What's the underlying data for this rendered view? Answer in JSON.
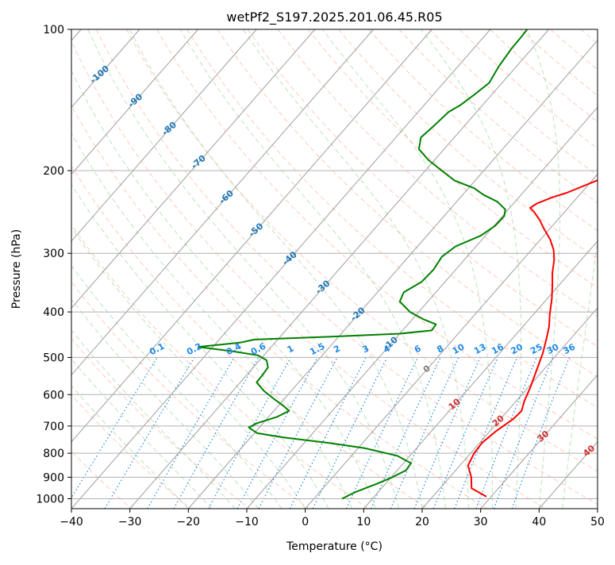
{
  "chart_data": {
    "type": "line",
    "title": "wetPf2_S197.2025.201.06.45.R05",
    "xlabel": "Temperature (°C)",
    "ylabel": "Pressure (hPa)",
    "xlim": [
      -40,
      50
    ],
    "ylim": [
      1050,
      100
    ],
    "y_scale": "log",
    "grid": true,
    "x_ticks": [
      "−40",
      "−30",
      "−20",
      "−10",
      "0",
      "10",
      "20",
      "30",
      "40",
      "50"
    ],
    "y_ticks": [
      "100",
      "200",
      "300",
      "400",
      "500",
      "600",
      "700",
      "800",
      "900",
      "1000"
    ],
    "skew_t": true,
    "series": [
      {
        "color": "#ff0000",
        "points_t_p": [
          [
            29.2,
            990
          ],
          [
            25.4,
            950
          ],
          [
            23.7,
            900
          ],
          [
            21.4,
            850
          ],
          [
            20.6,
            800
          ],
          [
            20.4,
            760
          ],
          [
            21.0,
            720
          ],
          [
            22.2,
            675
          ],
          [
            22.4,
            650
          ],
          [
            21.4,
            620
          ],
          [
            20.4,
            580
          ],
          [
            18.8,
            530
          ],
          [
            17.4,
            490
          ],
          [
            15.8,
            455
          ],
          [
            14.5,
            430
          ],
          [
            12.8,
            405
          ],
          [
            10.8,
            375
          ],
          [
            8.8,
            350
          ],
          [
            7.0,
            330
          ],
          [
            5.4,
            310
          ],
          [
            3.8,
            295
          ],
          [
            1.6,
            280
          ],
          [
            -1.2,
            265
          ],
          [
            -3.0,
            255
          ],
          [
            -5.2,
            245
          ],
          [
            -6.5,
            240
          ],
          [
            -6.0,
            235
          ],
          [
            -4.3,
            228
          ],
          [
            -2.5,
            223
          ],
          [
            -1.0,
            217
          ],
          [
            0.8,
            210
          ],
          [
            2.5,
            203
          ],
          [
            4.2,
            195
          ],
          [
            6.4,
            185
          ],
          [
            8.5,
            175
          ],
          [
            10.3,
            167
          ],
          [
            11.8,
            160
          ],
          [
            12.0,
            150
          ],
          [
            12.4,
            142
          ],
          [
            13.9,
            135
          ],
          [
            18.0,
            125
          ],
          [
            21.4,
            115
          ],
          [
            23.4,
            108
          ],
          [
            24.4,
            103
          ],
          [
            24.4,
            100
          ]
        ]
      },
      {
        "color": "#008000",
        "points_t_p": [
          [
            4.8,
            1000
          ],
          [
            6.0,
            970
          ],
          [
            7.2,
            950
          ],
          [
            8.5,
            930
          ],
          [
            10.2,
            900
          ],
          [
            11.5,
            870
          ],
          [
            11.3,
            840
          ],
          [
            7.8,
            810
          ],
          [
            1.0,
            780
          ],
          [
            -6.0,
            760
          ],
          [
            -14.5,
            740
          ],
          [
            -19.5,
            725
          ],
          [
            -21.8,
            705
          ],
          [
            -21.0,
            690
          ],
          [
            -18.6,
            670
          ],
          [
            -17.4,
            650
          ],
          [
            -19.0,
            635
          ],
          [
            -21.5,
            615
          ],
          [
            -24.6,
            590
          ],
          [
            -27.2,
            565
          ],
          [
            -27.3,
            545
          ],
          [
            -27.5,
            525
          ],
          [
            -28.8,
            507
          ],
          [
            -31.0,
            495
          ],
          [
            -36.0,
            485
          ],
          [
            -42.5,
            475
          ],
          [
            -36.0,
            465
          ],
          [
            -34.0,
            458
          ],
          [
            -22.0,
            452
          ],
          [
            -10.0,
            445
          ],
          [
            -5.0,
            438
          ],
          [
            -5.2,
            425
          ],
          [
            -8.0,
            415
          ],
          [
            -11.5,
            400
          ],
          [
            -14.8,
            380
          ],
          [
            -15.5,
            363
          ],
          [
            -14.0,
            345
          ],
          [
            -13.8,
            325
          ],
          [
            -14.3,
            305
          ],
          [
            -13.5,
            290
          ],
          [
            -10.8,
            275
          ],
          [
            -9.8,
            262
          ],
          [
            -9.7,
            250
          ],
          [
            -10.5,
            242
          ],
          [
            -13.0,
            233
          ],
          [
            -16.5,
            225
          ],
          [
            -19.0,
            218
          ],
          [
            -23.5,
            210
          ],
          [
            -27.2,
            200
          ],
          [
            -31.0,
            190
          ],
          [
            -34.3,
            180
          ],
          [
            -35.7,
            170
          ],
          [
            -35.2,
            160
          ],
          [
            -34.8,
            150
          ],
          [
            -33.8,
            145
          ],
          [
            -33.0,
            138
          ],
          [
            -32.2,
            130
          ],
          [
            -33.0,
            120
          ],
          [
            -33.5,
            110
          ],
          [
            -33.6,
            103
          ],
          [
            -33.7,
            100
          ]
        ]
      }
    ],
    "isotherm_labels": [
      "-100",
      "-90",
      "-80",
      "-70",
      "-60",
      "-50",
      "-40",
      "-30",
      "-20",
      "-10",
      "0",
      "10",
      "20",
      "30",
      "40"
    ],
    "mixing_ratio_labels": [
      "0.1",
      "0.2",
      "0.4",
      "0.6",
      "1",
      "1.5",
      "2",
      "3",
      "4",
      "6",
      "8",
      "10",
      "13",
      "16",
      "20",
      "25",
      "30",
      "36"
    ]
  }
}
